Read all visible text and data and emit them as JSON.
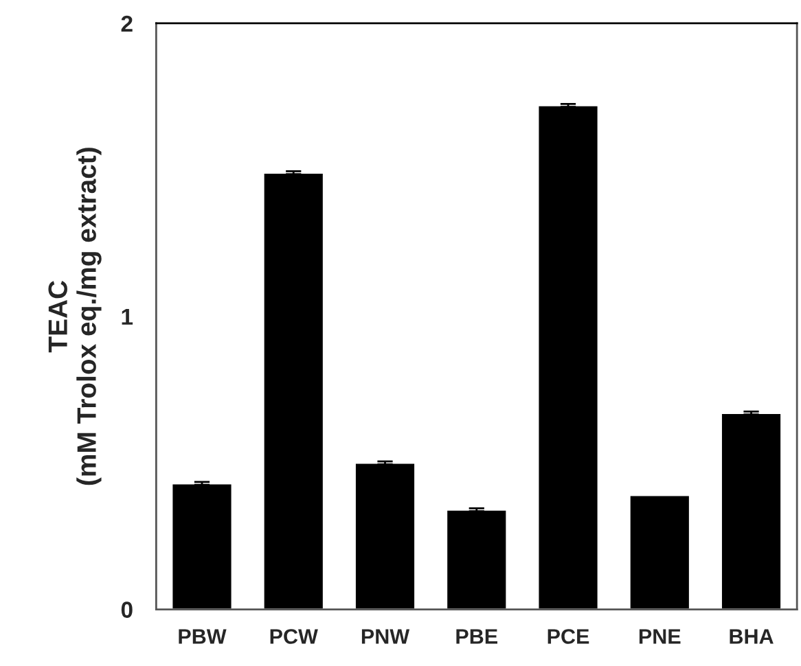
{
  "chart_data": {
    "type": "bar",
    "ylabel": "TEAC\n(mM Trolox eq./mg extract)",
    "categories": [
      "PBW",
      "PCW",
      "PNW",
      "PBE",
      "PCE",
      "PNE",
      "BHA"
    ],
    "values": [
      0.43,
      1.49,
      0.5,
      0.34,
      1.72,
      0.39,
      0.67
    ],
    "errors": [
      0.005,
      0.005,
      0.005,
      0.005,
      0.005,
      null,
      0.005
    ],
    "color": "#000000",
    "ylim": [
      0,
      2
    ],
    "yticks": [
      0,
      1,
      2
    ],
    "grid": false
  }
}
